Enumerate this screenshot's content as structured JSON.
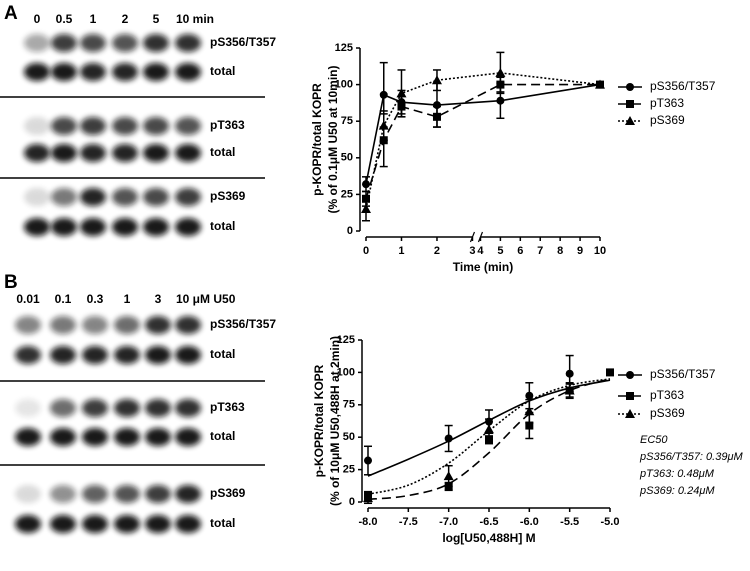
{
  "blots": [
    {
      "panel": "A",
      "lanes": [
        "0",
        "0.5",
        "1",
        "2",
        "5",
        "10 min"
      ],
      "rows": [
        "pS356/T357",
        "total",
        "pT363",
        "total",
        "pS369",
        "total"
      ]
    },
    {
      "panel": "B",
      "lanes": [
        "0.01",
        "0.1",
        "0.3",
        "1",
        "3",
        "10 μM U50"
      ],
      "rows": [
        "pS356/T357",
        "total",
        "pT363",
        "total",
        "pS369",
        "total"
      ]
    }
  ],
  "chart_data": [
    {
      "type": "line",
      "ylabel": [
        "p-KOPR/total KOPR",
        "(% of 0.1μM U50 at 10min)"
      ],
      "xlabel": "Time (min)",
      "x": [
        0,
        0.5,
        1,
        2,
        5,
        10
      ],
      "xlim": [
        0,
        10
      ],
      "x_break": [
        3,
        4
      ],
      "xticks": [
        0,
        1,
        2,
        3,
        4,
        5,
        6,
        7,
        8,
        9,
        10
      ],
      "ylim": [
        0,
        125
      ],
      "yticks": [
        0,
        25,
        50,
        75,
        100,
        125
      ],
      "legend": "right",
      "series": [
        {
          "name": "pS356/T357",
          "color": "#000000",
          "marker": "circle",
          "line_style": "solid",
          "values": [
            32,
            93,
            88,
            86,
            89,
            100
          ],
          "errors": [
            5,
            22,
            8,
            15,
            12,
            0
          ]
        },
        {
          "name": "pT363",
          "color": "#000000",
          "marker": "square",
          "line_style": "dashed",
          "values": [
            22,
            62,
            85,
            78,
            100,
            100
          ],
          "errors": [
            5,
            18,
            7,
            7,
            5,
            0
          ]
        },
        {
          "name": "pS369",
          "color": "#000000",
          "marker": "triangle",
          "line_style": "dotted",
          "values": [
            15,
            72,
            94,
            103,
            108,
            100
          ],
          "errors": [
            8,
            10,
            16,
            7,
            14,
            0
          ]
        }
      ]
    },
    {
      "type": "scatter",
      "ylabel": [
        "p-KOPR/total KOPR",
        "(% of 10μM U50,488H at 2min)"
      ],
      "xlabel": "log[U50,488H] M",
      "x": [
        -8,
        -7,
        -6.5,
        -6,
        -5.5,
        -5
      ],
      "xlim": [
        -8,
        -5
      ],
      "xticks": [
        {
          "value": -8,
          "label": "-8.0"
        },
        {
          "value": -7.5,
          "label": "-7.5"
        },
        {
          "value": -7,
          "label": "-7.0"
        },
        {
          "value": -6.5,
          "label": "-6.5"
        },
        {
          "value": -6,
          "label": "-6.0"
        },
        {
          "value": -5.5,
          "label": "-5.5"
        },
        {
          "value": -5,
          "label": "-5.0"
        }
      ],
      "ylim": [
        0,
        125
      ],
      "yticks": [
        0,
        25,
        50,
        75,
        100,
        125
      ],
      "legend": "right",
      "fit_x": [
        -8,
        -7.5,
        -7,
        -6.5,
        -6,
        -5.5,
        -5
      ],
      "annotations": [
        "EC50",
        "pS356/T357: 0.39μM",
        "pT363: 0.48μM",
        "pS369: 0.24μM"
      ],
      "series": [
        {
          "name": "pS356/T357",
          "color": "#000000",
          "marker": "circle",
          "line_style": "solid",
          "values": [
            32,
            49,
            62,
            82,
            99,
            null
          ],
          "errors": [
            11,
            10,
            9,
            10,
            14,
            null
          ],
          "fit": [
            20,
            33,
            47,
            63,
            78,
            88,
            94
          ]
        },
        {
          "name": "pT363",
          "color": "#000000",
          "marker": "square",
          "line_style": "dashed",
          "values": [
            5,
            12,
            48,
            59,
            86,
            100
          ],
          "errors": [
            3,
            3,
            3,
            10,
            5,
            0
          ],
          "fit": [
            2,
            5,
            14,
            38,
            68,
            86,
            95
          ]
        },
        {
          "name": "pS369",
          "color": "#000000",
          "marker": "triangle",
          "line_style": "dotted",
          "values": [
            3,
            20,
            56,
            70,
            86,
            null
          ],
          "errors": [
            4,
            8,
            8,
            9,
            6,
            null
          ],
          "fit": [
            6,
            13,
            30,
            55,
            78,
            90,
            95
          ]
        }
      ]
    }
  ]
}
